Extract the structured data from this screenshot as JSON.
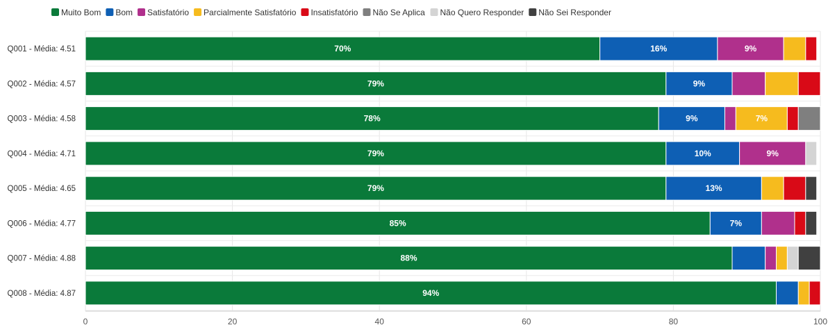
{
  "chart_data": {
    "type": "bar",
    "orientation": "horizontal",
    "stacked": true,
    "title": "",
    "xlabel": "",
    "ylabel": "",
    "xlim": [
      0,
      100
    ],
    "x_ticks": [
      0,
      20,
      40,
      60,
      80,
      100
    ],
    "grid": true,
    "legend_position": "top-left",
    "categories": [
      "Q001 - Média: 4.51",
      "Q002 - Média: 4.57",
      "Q003 - Média: 4.58",
      "Q004 - Média: 4.71",
      "Q005 - Média: 4.65",
      "Q006 - Média: 4.77",
      "Q007 - Média: 4.88",
      "Q008 - Média: 4.87"
    ],
    "series": [
      {
        "name": "Muito Bom",
        "color": "#0a7a3a",
        "values": [
          70,
          79,
          78,
          79,
          79,
          85,
          88,
          94
        ]
      },
      {
        "name": "Bom",
        "color": "#0e5fb4",
        "values": [
          16,
          9,
          9,
          10,
          13,
          7,
          4.5,
          3
        ]
      },
      {
        "name": "Satisfatório",
        "color": "#b0308c",
        "values": [
          9,
          4.5,
          1.5,
          9,
          0,
          4.5,
          1.5,
          0
        ]
      },
      {
        "name": "Parcialmente Satisfatório",
        "color": "#f6bb1e",
        "values": [
          3,
          4.5,
          7,
          0,
          3,
          0,
          1.5,
          1.5
        ]
      },
      {
        "name": "Insatisfatório",
        "color": "#d90a17",
        "values": [
          1.5,
          3,
          1.5,
          0,
          3,
          1.5,
          0,
          1.5
        ]
      },
      {
        "name": "Não Se Aplica",
        "color": "#7f7f7f",
        "values": [
          0,
          0,
          3,
          0,
          0,
          0,
          0,
          0
        ]
      },
      {
        "name": "Não Quero Responder",
        "color": "#d4d4d4",
        "values": [
          0,
          0,
          0,
          1.5,
          0,
          0,
          1.5,
          0
        ]
      },
      {
        "name": "Não Sei Responder",
        "color": "#404040",
        "values": [
          0,
          0,
          0,
          0,
          1.5,
          1.5,
          3,
          0
        ]
      }
    ],
    "data_labels": [
      {
        "category": 0,
        "series": 0,
        "text": "70%"
      },
      {
        "category": 0,
        "series": 1,
        "text": "16%"
      },
      {
        "category": 0,
        "series": 2,
        "text": "9%"
      },
      {
        "category": 1,
        "series": 0,
        "text": "79%"
      },
      {
        "category": 1,
        "series": 1,
        "text": "9%"
      },
      {
        "category": 2,
        "series": 0,
        "text": "78%"
      },
      {
        "category": 2,
        "series": 1,
        "text": "9%"
      },
      {
        "category": 2,
        "series": 3,
        "text": "7%"
      },
      {
        "category": 3,
        "series": 0,
        "text": "79%"
      },
      {
        "category": 3,
        "series": 1,
        "text": "10%"
      },
      {
        "category": 3,
        "series": 2,
        "text": "9%"
      },
      {
        "category": 4,
        "series": 0,
        "text": "79%"
      },
      {
        "category": 4,
        "series": 1,
        "text": "13%"
      },
      {
        "category": 5,
        "series": 0,
        "text": "85%"
      },
      {
        "category": 5,
        "series": 1,
        "text": "7%"
      },
      {
        "category": 6,
        "series": 0,
        "text": "88%"
      },
      {
        "category": 7,
        "series": 0,
        "text": "94%"
      }
    ]
  }
}
